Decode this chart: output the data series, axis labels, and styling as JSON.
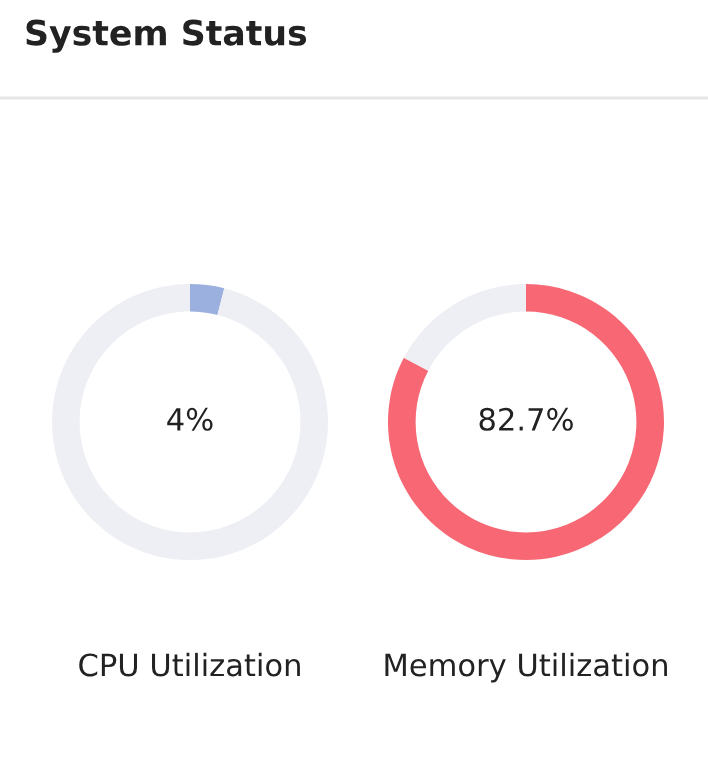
{
  "chart_data": [
    {
      "type": "donut",
      "title": "System Status",
      "categories": [
        null,
        null
      ],
      "values": [
        4,
        96
      ],
      "colors": [
        "#9cb0df",
        "#eeeff4"
      ],
      "annotations": [
        "4%"
      ],
      "xlabel": "CPU Utilization"
    },
    {
      "type": "donut",
      "categories": [
        null,
        null
      ],
      "values": [
        82.7,
        17.3
      ],
      "colors": [
        "#f76874",
        "#eeeff4"
      ],
      "annotations": [
        "82.7%"
      ],
      "xlabel": "Memory Utilization"
    }
  ]
}
